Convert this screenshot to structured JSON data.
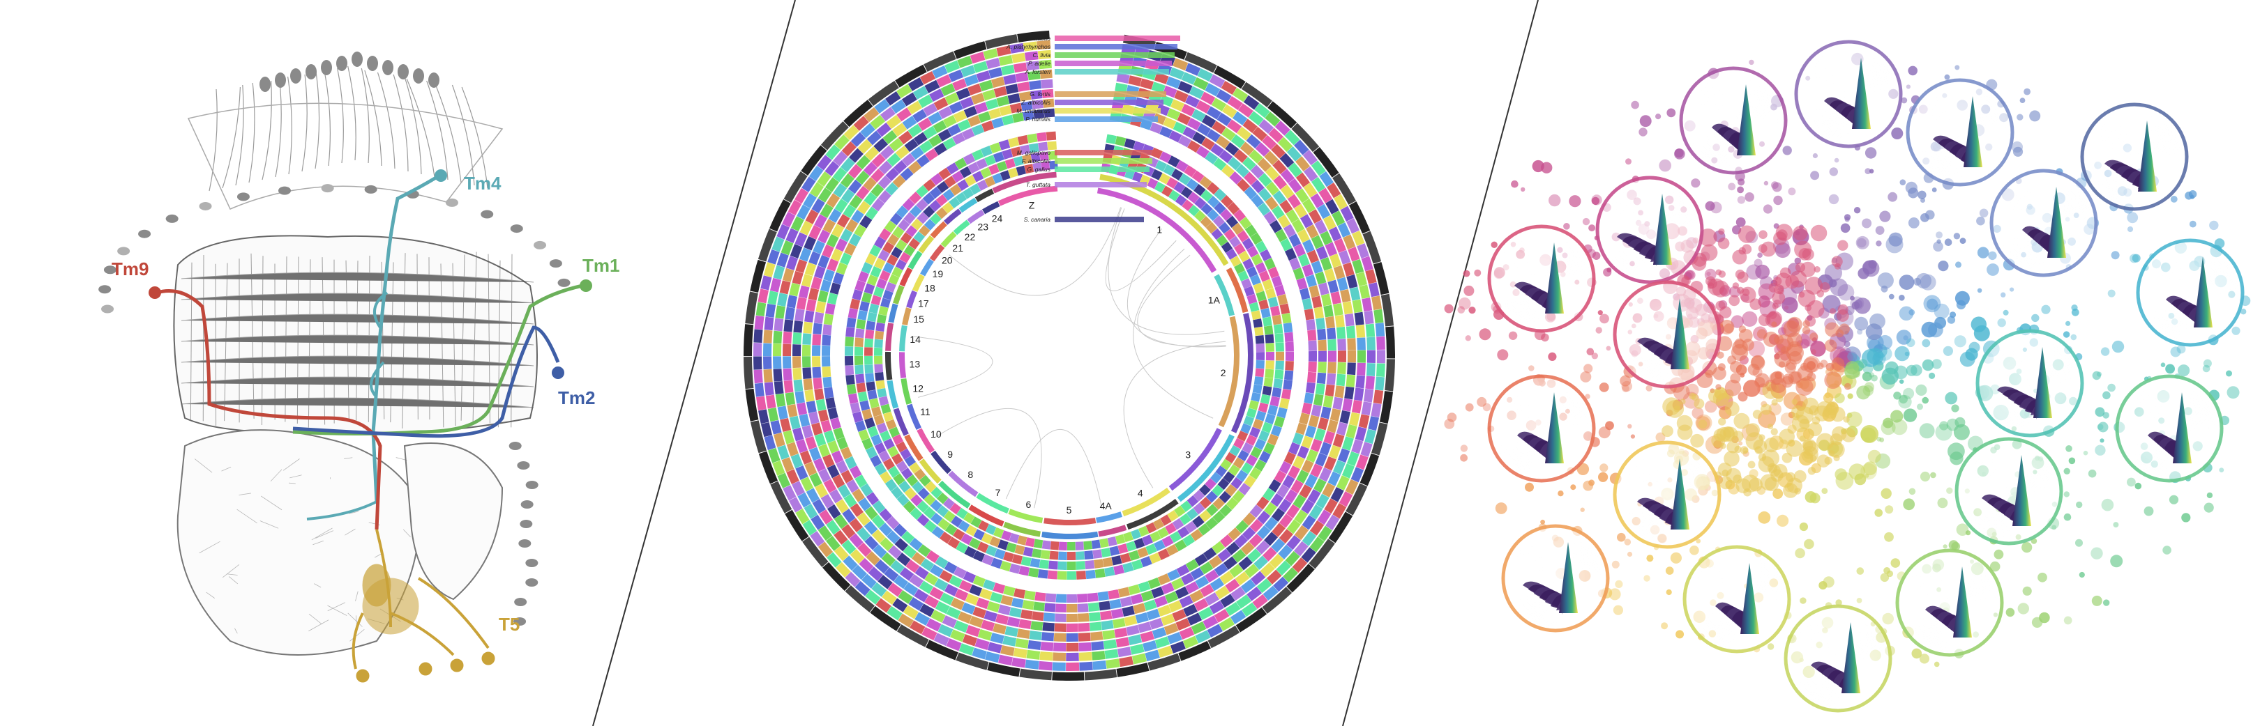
{
  "neuron_panel": {
    "labels": [
      {
        "text": "Tm4",
        "color": "#5aa9b4"
      },
      {
        "text": "Tm9",
        "color": "#c0473a"
      },
      {
        "text": "Tm1",
        "color": "#6bb05a"
      },
      {
        "text": "Tm2",
        "color": "#3e5ea6"
      },
      {
        "text": "T5",
        "color": "#c9a238"
      }
    ]
  },
  "circos_panel": {
    "species": [
      "A. macao",
      "A. platyrhynchos",
      "C. livia",
      "P. adelie",
      "A. forsteri",
      "G. fortis",
      "Z. albicollis",
      "M. undulatus",
      "P. humilis",
      "M. gallopavo",
      "F. albicollis",
      "G. gallus",
      "T. guttata",
      "S. canaria"
    ],
    "chromosomes": [
      "1",
      "1A",
      "2",
      "3",
      "4",
      "4A",
      "5",
      "6",
      "7",
      "8",
      "9",
      "10",
      "11",
      "12",
      "13",
      "14",
      "15",
      "17",
      "18",
      "19",
      "20",
      "21",
      "22",
      "23",
      "24",
      "Z"
    ]
  },
  "bubble_panel": {
    "colors": [
      "#d9557a",
      "#c74f8e",
      "#a95aa6",
      "#8d6fb8",
      "#7a8ec9",
      "#5a9bd6",
      "#4cb6d1",
      "#56c4b5",
      "#6ac98e",
      "#9bd170",
      "#cfd763",
      "#f0c85a",
      "#f0a05a",
      "#e8765a"
    ]
  }
}
